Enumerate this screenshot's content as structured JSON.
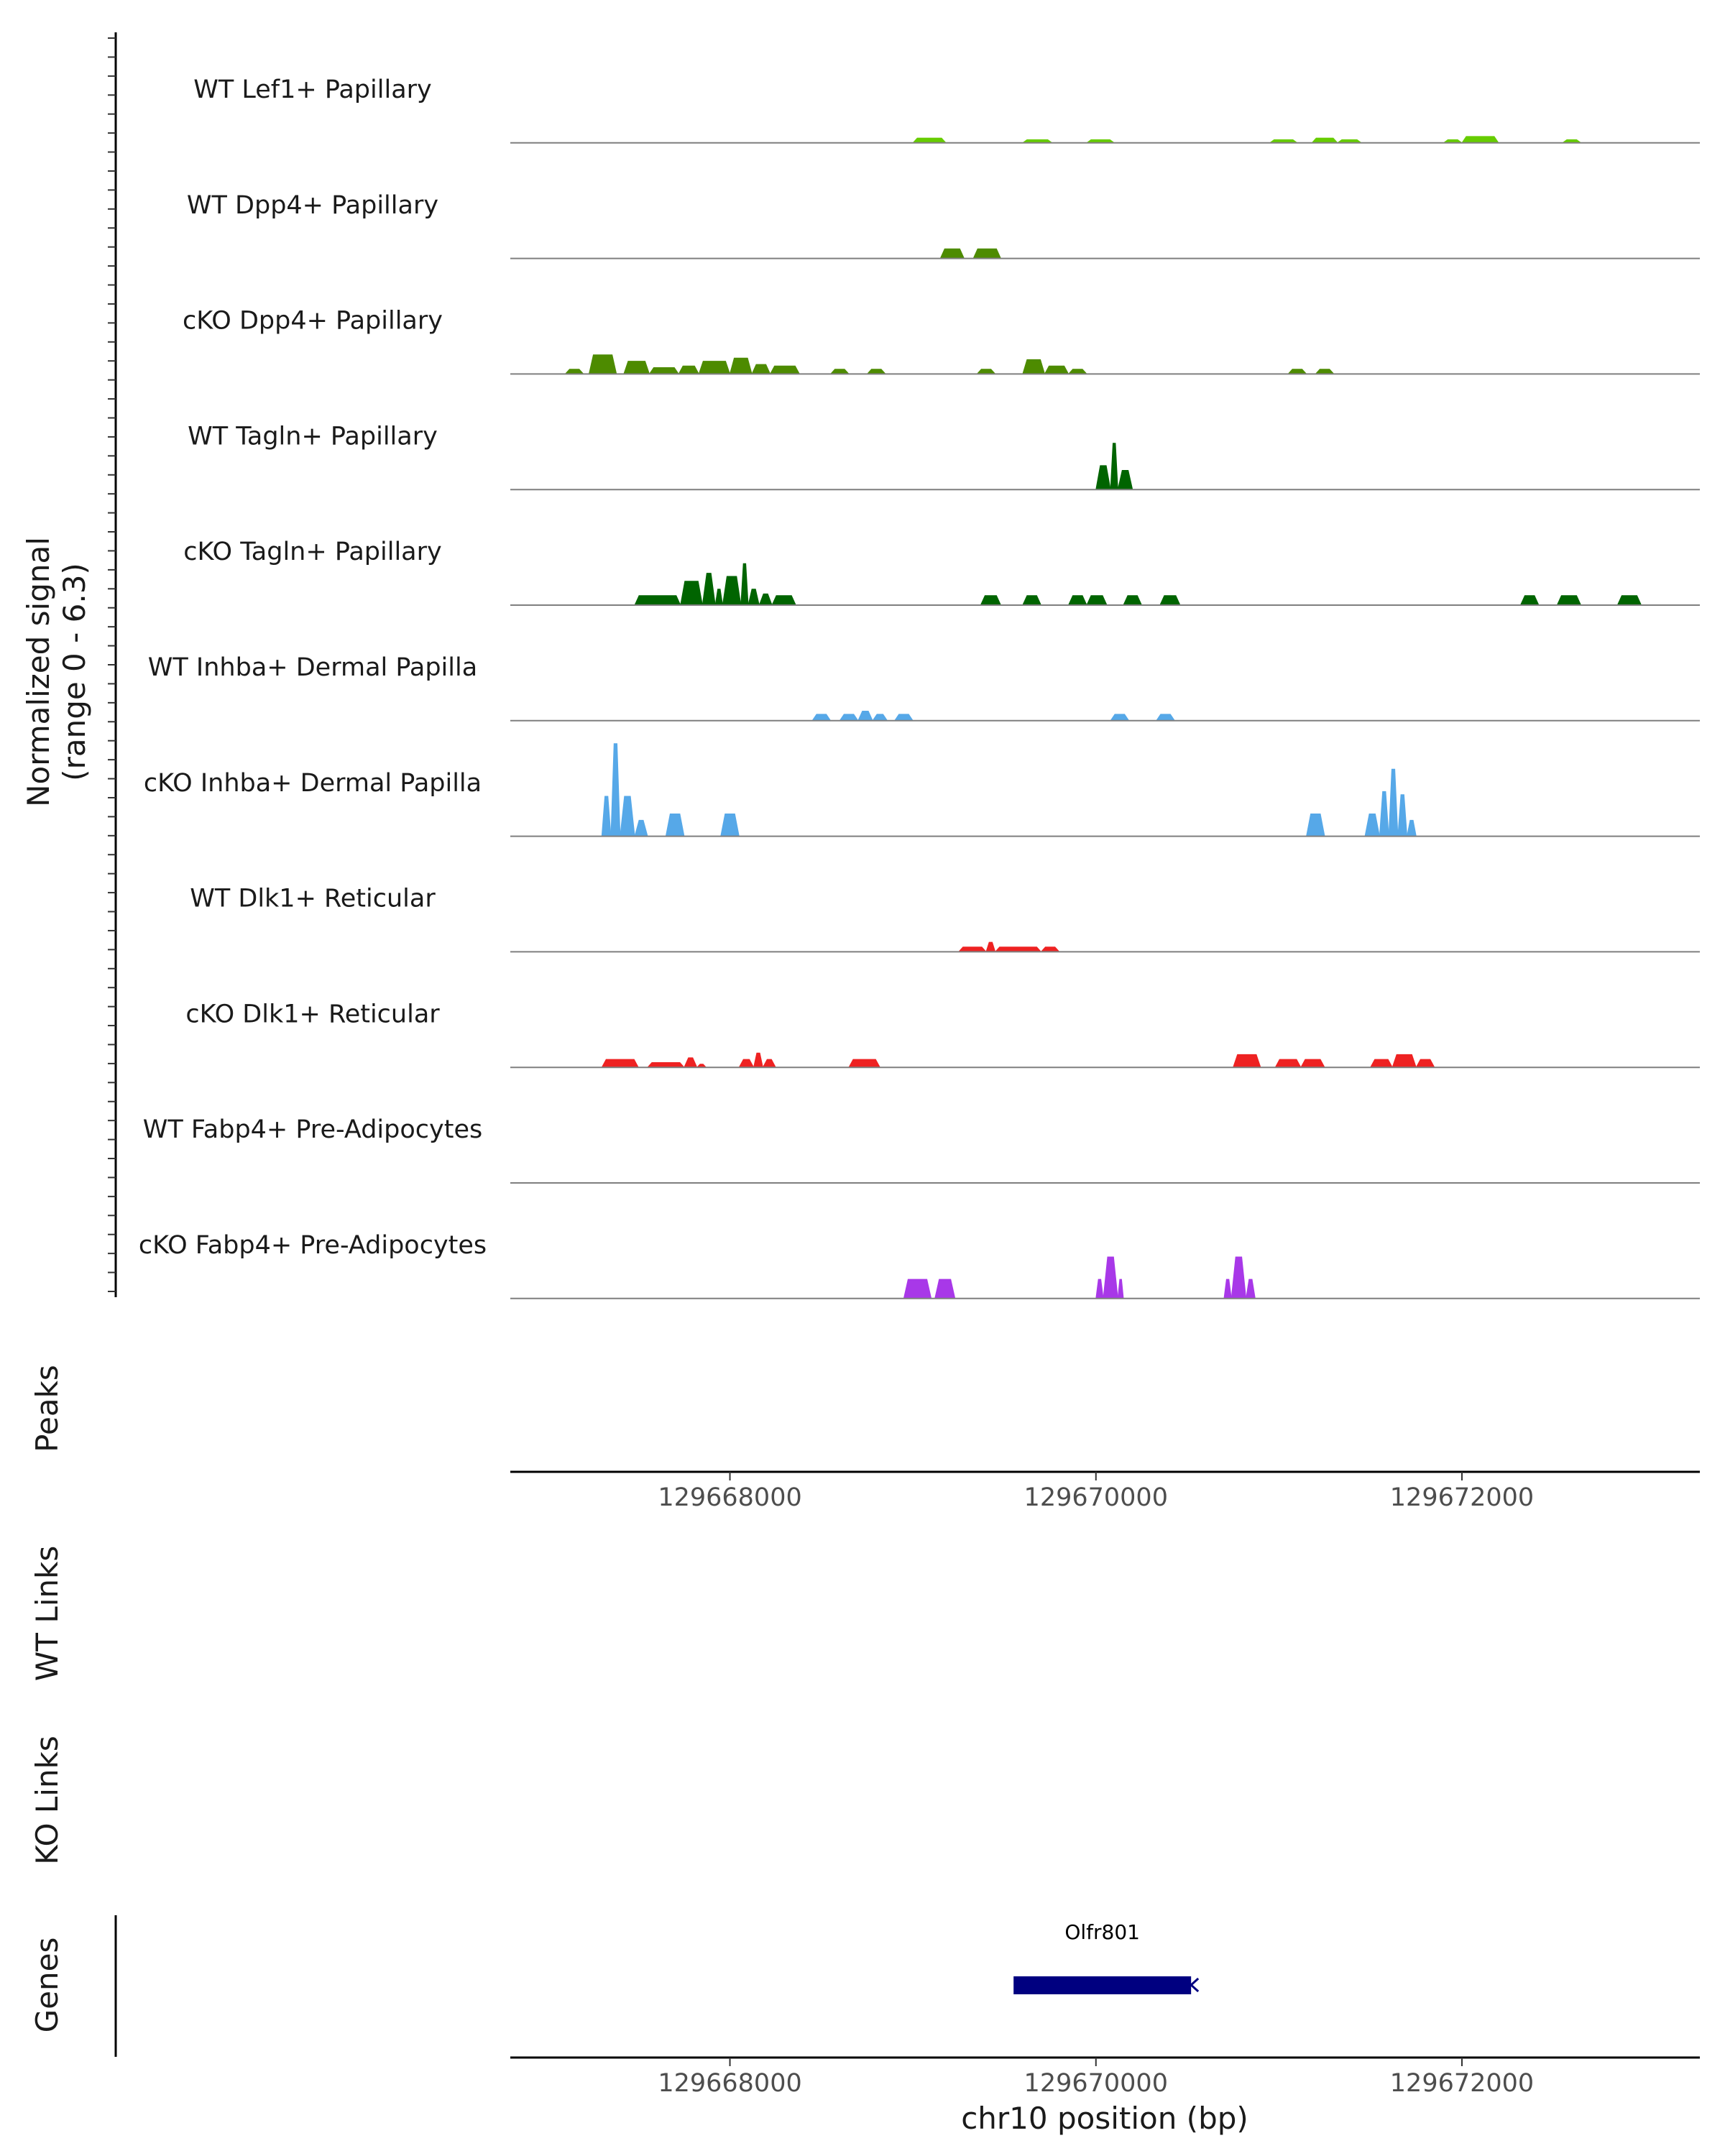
{
  "chart_data": {
    "type": "area",
    "title": "",
    "xlabel": "chr10 position (bp)",
    "ylabel_lines": [
      "Normalized signal",
      "(range 0 - 6.3)"
    ],
    "ylim": [
      0,
      6.3
    ],
    "xlim": [
      129666800,
      129673300
    ],
    "x_ticks": [
      129668000,
      129670000,
      129672000
    ],
    "x_tick_labels": [
      "129668000",
      "129670000",
      "129672000"
    ],
    "panel_labels": {
      "peaks": "Peaks",
      "wt_links": "WT Links",
      "ko_links": "KO Links",
      "genes": "Genes"
    },
    "series": [
      {
        "name": "WT Lef1+ Papillary",
        "color": "#66CC00",
        "peaks": [
          [
            129669000,
            129669180,
            0.3
          ],
          [
            129669600,
            129669760,
            0.2
          ],
          [
            129669950,
            129670100,
            0.2
          ],
          [
            129670950,
            129671100,
            0.2
          ],
          [
            129671180,
            129671320,
            0.3
          ],
          [
            129671320,
            129671450,
            0.2
          ],
          [
            129671900,
            129672000,
            0.2
          ],
          [
            129672000,
            129672200,
            0.4
          ],
          [
            129672550,
            129672650,
            0.2
          ]
        ]
      },
      {
        "name": "WT Dpp4+ Papillary",
        "color": "#4D8B00",
        "peaks": [
          [
            129669150,
            129669280,
            0.6
          ],
          [
            129669330,
            129669480,
            0.6
          ]
        ]
      },
      {
        "name": "cKO Dpp4+ Papillary",
        "color": "#4D8B00",
        "peaks": [
          [
            129667100,
            129667200,
            0.3
          ],
          [
            129667230,
            129667380,
            1.2
          ],
          [
            129667420,
            129667560,
            0.8
          ],
          [
            129667560,
            129667720,
            0.4
          ],
          [
            129667720,
            129667830,
            0.5
          ],
          [
            129667830,
            129668000,
            0.8
          ],
          [
            129668000,
            129668120,
            1.0
          ],
          [
            129668120,
            129668220,
            0.6
          ],
          [
            129668220,
            129668380,
            0.5
          ],
          [
            129668550,
            129668650,
            0.3
          ],
          [
            129668750,
            129668850,
            0.3
          ],
          [
            129669350,
            129669450,
            0.3
          ],
          [
            129669600,
            129669720,
            0.9
          ],
          [
            129669720,
            129669850,
            0.5
          ],
          [
            129669850,
            129669950,
            0.3
          ],
          [
            129671050,
            129671150,
            0.3
          ],
          [
            129671200,
            129671300,
            0.3
          ]
        ]
      },
      {
        "name": "WT Tagln+ Papillary",
        "color": "#006400",
        "peaks": [
          [
            129670000,
            129670080,
            1.5
          ],
          [
            129670080,
            129670120,
            2.9
          ],
          [
            129670120,
            129670200,
            1.2
          ]
        ]
      },
      {
        "name": "cKO Tagln+ Papillary",
        "color": "#006400",
        "peaks": [
          [
            129667480,
            129667730,
            0.6
          ],
          [
            129667730,
            129667850,
            1.5
          ],
          [
            129667850,
            129667920,
            2.0
          ],
          [
            129667920,
            129667960,
            1.0
          ],
          [
            129667960,
            129668060,
            1.8
          ],
          [
            129668060,
            129668100,
            2.6
          ],
          [
            129668100,
            129668160,
            1.0
          ],
          [
            129668160,
            129668230,
            0.7
          ],
          [
            129668230,
            129668360,
            0.6
          ],
          [
            129669370,
            129669480,
            0.6
          ],
          [
            129669600,
            129669700,
            0.6
          ],
          [
            129669850,
            129669950,
            0.6
          ],
          [
            129669950,
            129670060,
            0.6
          ],
          [
            129670150,
            129670250,
            0.6
          ],
          [
            129670350,
            129670460,
            0.6
          ],
          [
            129672320,
            129672420,
            0.6
          ],
          [
            129672520,
            129672650,
            0.6
          ],
          [
            129672850,
            129672980,
            0.6
          ]
        ]
      },
      {
        "name": "WT Inhba+ Dermal Papilla",
        "color": "#56A8E8",
        "peaks": [
          [
            129668450,
            129668550,
            0.4
          ],
          [
            129668600,
            129668700,
            0.4
          ],
          [
            129668700,
            129668780,
            0.6
          ],
          [
            129668780,
            129668860,
            0.4
          ],
          [
            129668900,
            129669000,
            0.4
          ],
          [
            129670080,
            129670180,
            0.4
          ],
          [
            129670330,
            129670430,
            0.4
          ]
        ]
      },
      {
        "name": "cKO Inhba+ Dermal Papilla",
        "color": "#56A8E8",
        "peaks": [
          [
            129667300,
            129667350,
            2.5
          ],
          [
            129667350,
            129667400,
            5.8
          ],
          [
            129667400,
            129667480,
            2.5
          ],
          [
            129667480,
            129667550,
            1.0
          ],
          [
            129667650,
            129667750,
            1.4
          ],
          [
            129667950,
            129668050,
            1.4
          ],
          [
            129671150,
            129671250,
            1.4
          ],
          [
            129671470,
            129671550,
            1.4
          ],
          [
            129671550,
            129671600,
            2.8
          ],
          [
            129671600,
            129671650,
            4.2
          ],
          [
            129671650,
            129671700,
            2.6
          ],
          [
            129671700,
            129671750,
            1.0
          ]
        ]
      },
      {
        "name": "WT Dlk1+ Reticular",
        "color": "#EE2222",
        "peaks": [
          [
            129669250,
            129669400,
            0.3
          ],
          [
            129669400,
            129669450,
            0.6
          ],
          [
            129669450,
            129669700,
            0.3
          ],
          [
            129669700,
            129669800,
            0.3
          ]
        ]
      },
      {
        "name": "cKO Dlk1+ Reticular",
        "color": "#EE2222",
        "peaks": [
          [
            129667300,
            129667500,
            0.5
          ],
          [
            129667550,
            129667750,
            0.3
          ],
          [
            129667750,
            129667820,
            0.6
          ],
          [
            129667820,
            129667870,
            0.2
          ],
          [
            129668050,
            129668130,
            0.5
          ],
          [
            129668130,
            129668180,
            0.9
          ],
          [
            129668180,
            129668250,
            0.5
          ],
          [
            129668650,
            129668820,
            0.5
          ],
          [
            129670750,
            129670900,
            0.8
          ],
          [
            129670980,
            129671120,
            0.5
          ],
          [
            129671120,
            129671250,
            0.5
          ],
          [
            129671500,
            129671620,
            0.5
          ],
          [
            129671620,
            129671750,
            0.8
          ],
          [
            129671750,
            129671850,
            0.5
          ]
        ]
      },
      {
        "name": "WT Fabp4+ Pre-Adipocytes",
        "color": "#A838E8",
        "peaks": []
      },
      {
        "name": "cKO Fabp4+ Pre-Adipocytes",
        "color": "#A838E8",
        "peaks": [
          [
            129668950,
            129669100,
            1.2
          ],
          [
            129669120,
            129669230,
            1.2
          ],
          [
            129670000,
            129670040,
            1.2
          ],
          [
            129670040,
            129670120,
            2.6
          ],
          [
            129670120,
            129670150,
            1.2
          ],
          [
            129670700,
            129670740,
            1.2
          ],
          [
            129670740,
            129670820,
            2.6
          ],
          [
            129670820,
            129670870,
            1.2
          ]
        ]
      }
    ],
    "genes": [
      {
        "name": "Olfr801",
        "start": 129669550,
        "end": 129670520,
        "strand": "-",
        "color": "#000080"
      }
    ]
  }
}
